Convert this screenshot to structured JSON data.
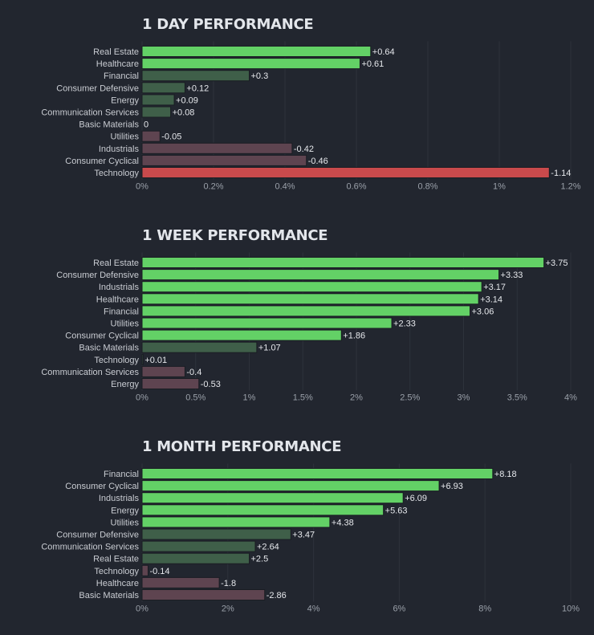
{
  "chart_data": [
    {
      "type": "bar",
      "orientation": "horizontal",
      "title": "1 DAY PERFORMANCE",
      "categories": [
        "Real Estate",
        "Healthcare",
        "Financial",
        "Consumer Defensive",
        "Energy",
        "Communication Services",
        "Basic Materials",
        "Utilities",
        "Industrials",
        "Consumer Cyclical",
        "Technology"
      ],
      "values": [
        0.64,
        0.61,
        0.3,
        0.12,
        0.09,
        0.08,
        0,
        -0.05,
        -0.42,
        -0.46,
        -1.14
      ],
      "value_labels": [
        "+0.64",
        "+0.61",
        "+0.3",
        "+0.12",
        "+0.09",
        "+0.08",
        "0",
        "-0.05",
        "-0.42",
        "-0.46",
        "-1.14"
      ],
      "xlim": [
        0,
        1.2
      ],
      "ticks": [
        0,
        0.2,
        0.4,
        0.6,
        0.8,
        1,
        1.2
      ],
      "tick_labels": [
        "0%",
        "0.2%",
        "0.4%",
        "0.6%",
        "0.8%",
        "1%",
        "1.2%"
      ],
      "xlabel": "",
      "ylabel": ""
    },
    {
      "type": "bar",
      "orientation": "horizontal",
      "title": "1 WEEK PERFORMANCE",
      "categories": [
        "Real Estate",
        "Consumer Defensive",
        "Industrials",
        "Healthcare",
        "Financial",
        "Utilities",
        "Consumer Cyclical",
        "Basic Materials",
        "Technology",
        "Communication Services",
        "Energy"
      ],
      "values": [
        3.75,
        3.33,
        3.17,
        3.14,
        3.06,
        2.33,
        1.86,
        1.07,
        0.01,
        -0.4,
        -0.53
      ],
      "value_labels": [
        "+3.75",
        "+3.33",
        "+3.17",
        "+3.14",
        "+3.06",
        "+2.33",
        "+1.86",
        "+1.07",
        "+0.01",
        "-0.4",
        "-0.53"
      ],
      "xlim": [
        0,
        4
      ],
      "ticks": [
        0,
        0.5,
        1,
        1.5,
        2,
        2.5,
        3,
        3.5,
        4
      ],
      "tick_labels": [
        "0%",
        "0.5%",
        "1%",
        "1.5%",
        "2%",
        "2.5%",
        "3%",
        "3.5%",
        "4%"
      ],
      "xlabel": "",
      "ylabel": ""
    },
    {
      "type": "bar",
      "orientation": "horizontal",
      "title": "1 MONTH PERFORMANCE",
      "categories": [
        "Financial",
        "Consumer Cyclical",
        "Industrials",
        "Energy",
        "Utilities",
        "Consumer Defensive",
        "Communication Services",
        "Real Estate",
        "Technology",
        "Healthcare",
        "Basic Materials"
      ],
      "values": [
        8.18,
        6.93,
        6.09,
        5.63,
        4.38,
        3.47,
        2.64,
        2.5,
        -0.14,
        -1.8,
        -2.86
      ],
      "value_labels": [
        "+8.18",
        "+6.93",
        "+6.09",
        "+5.63",
        "+4.38",
        "+3.47",
        "+2.64",
        "+2.5",
        "-0.14",
        "-1.8",
        "-2.86"
      ],
      "xlim": [
        0,
        10
      ],
      "ticks": [
        0,
        2,
        4,
        6,
        8,
        10
      ],
      "tick_labels": [
        "0%",
        "2%",
        "4%",
        "6%",
        "8%",
        "10%"
      ],
      "xlabel": "",
      "ylabel": ""
    }
  ],
  "colors": {
    "background": "#22262f",
    "positive_strong": "#63d166",
    "positive_weak": "#3f5f49",
    "negative_weak": "#5e4450",
    "negative_strong": "#c94a4c"
  }
}
